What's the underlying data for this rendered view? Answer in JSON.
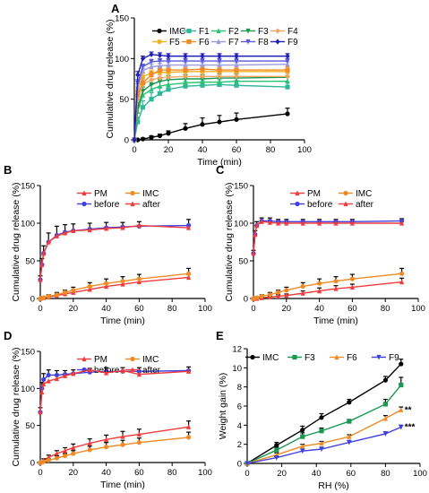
{
  "figure": {
    "panels": [
      {
        "label": "A",
        "xlabel": "Time (min)",
        "ylabel": "Cumulative drug release (%)"
      },
      {
        "label": "B",
        "xlabel": "Time (min)",
        "ylabel": "Cumulative drug release (%)"
      },
      {
        "label": "C",
        "xlabel": "Time (min)",
        "ylabel": "Cumulative drug release (%)"
      },
      {
        "label": "D",
        "xlabel": "Time (min)",
        "ylabel": "Cumulative drug release (%)"
      },
      {
        "label": "E",
        "xlabel": "RH (%)",
        "ylabel": "Weight gain (%)"
      }
    ]
  },
  "chart_data": [
    {
      "panel": "A",
      "type": "line",
      "xlabel": "Time (min)",
      "ylabel": "Cumulative drug release (%)",
      "xlim": [
        0,
        100
      ],
      "ylim": [
        0,
        150
      ],
      "xticks": [
        0,
        20,
        40,
        60,
        80,
        100
      ],
      "yticks": [
        0,
        50,
        100,
        150
      ],
      "x": [
        0,
        2,
        5,
        10,
        15,
        20,
        30,
        40,
        50,
        60,
        90
      ],
      "legend": "top, four columns",
      "series": [
        {
          "name": "IMC",
          "color": "#000000",
          "marker": "circle",
          "values": [
            0,
            0,
            1,
            3,
            5,
            8,
            14,
            19,
            22,
            25,
            32
          ],
          "errors": [
            0,
            0,
            1,
            2,
            2,
            3,
            6,
            8,
            8,
            8,
            7
          ]
        },
        {
          "name": "F1",
          "color": "#2fb79a",
          "marker": "square",
          "values": [
            0,
            22,
            40,
            50,
            57,
            62,
            66,
            67,
            68,
            67,
            65
          ],
          "errors": [
            0,
            6,
            8,
            8,
            7,
            6,
            6,
            6,
            6,
            6,
            6
          ]
        },
        {
          "name": "F2",
          "color": "#26c470",
          "marker": "triangle",
          "values": [
            0,
            35,
            55,
            62,
            66,
            68,
            70,
            71,
            71,
            72,
            72
          ],
          "errors": [
            0,
            6,
            6,
            6,
            6,
            6,
            5,
            5,
            5,
            5,
            5
          ]
        },
        {
          "name": "F3",
          "color": "#1a9850",
          "marker": "triangle-down",
          "values": [
            0,
            40,
            60,
            68,
            72,
            74,
            75,
            75,
            76,
            76,
            77
          ],
          "errors": [
            0,
            6,
            5,
            5,
            5,
            5,
            5,
            5,
            5,
            5,
            5
          ]
        },
        {
          "name": "F4",
          "color": "#f4a460",
          "marker": "diamond",
          "values": [
            0,
            50,
            68,
            74,
            76,
            77,
            78,
            78,
            78,
            78,
            78
          ],
          "errors": [
            0,
            5,
            5,
            4,
            4,
            4,
            4,
            4,
            4,
            4,
            4
          ]
        },
        {
          "name": "F5",
          "color": "#f2b01e",
          "marker": "circle",
          "values": [
            0,
            60,
            78,
            82,
            83,
            83,
            84,
            84,
            84,
            84,
            84
          ],
          "errors": [
            0,
            5,
            4,
            4,
            4,
            4,
            4,
            4,
            4,
            4,
            4
          ]
        },
        {
          "name": "F6",
          "color": "#f08a24",
          "marker": "square",
          "values": [
            0,
            55,
            70,
            80,
            86,
            86,
            86,
            87,
            86,
            86,
            86
          ],
          "errors": [
            0,
            5,
            5,
            4,
            4,
            4,
            4,
            4,
            4,
            4,
            4
          ]
        },
        {
          "name": "F7",
          "color": "#9b9bdf",
          "marker": "triangle",
          "values": [
            0,
            65,
            85,
            90,
            91,
            92,
            92,
            92,
            92,
            92,
            93
          ],
          "errors": [
            0,
            4,
            3,
            3,
            3,
            3,
            3,
            3,
            3,
            3,
            3
          ]
        },
        {
          "name": "F8",
          "color": "#5a5ad8",
          "marker": "triangle-down",
          "values": [
            0,
            70,
            90,
            96,
            97,
            97,
            97,
            97,
            97,
            97,
            97
          ],
          "errors": [
            0,
            4,
            3,
            3,
            3,
            3,
            3,
            3,
            3,
            3,
            3
          ]
        },
        {
          "name": "F9",
          "color": "#1f1fb4",
          "marker": "diamond",
          "values": [
            0,
            80,
            100,
            105,
            104,
            103,
            103,
            103,
            103,
            103,
            103
          ],
          "errors": [
            0,
            4,
            3,
            3,
            3,
            3,
            3,
            3,
            3,
            3,
            3
          ]
        }
      ]
    },
    {
      "panel": "B",
      "type": "line",
      "xlabel": "Time (min)",
      "ylabel": "Cumulative drug release (%)",
      "xlim": [
        0,
        100
      ],
      "ylim": [
        0,
        150
      ],
      "xticks": [
        0,
        20,
        40,
        60,
        80,
        100
      ],
      "yticks": [
        0,
        50,
        100,
        150
      ],
      "legend": "top, two columns",
      "series": [
        {
          "name": "PM",
          "color": "#ef3b3b",
          "marker": "triangle",
          "x": [
            0,
            2,
            5,
            10,
            15,
            20,
            30,
            40,
            50,
            60,
            90
          ],
          "values": [
            0,
            1,
            2,
            4,
            6,
            8,
            12,
            16,
            19,
            22,
            28
          ],
          "errors": [
            0,
            1,
            1,
            2,
            2,
            3,
            3,
            4,
            4,
            4,
            4
          ]
        },
        {
          "name": "IMC",
          "color": "#f08a24",
          "marker": "circle",
          "x": [
            0,
            2,
            5,
            10,
            15,
            20,
            30,
            40,
            50,
            60,
            90
          ],
          "values": [
            0,
            1,
            3,
            5,
            8,
            11,
            16,
            20,
            23,
            26,
            33
          ],
          "errors": [
            0,
            1,
            2,
            3,
            3,
            4,
            5,
            6,
            6,
            6,
            7
          ]
        },
        {
          "name": "before",
          "color": "#4040e0",
          "marker": "circle",
          "x": [
            0,
            1,
            2,
            5,
            10,
            15,
            20,
            30,
            40,
            50,
            60,
            90
          ],
          "values": [
            25,
            45,
            60,
            75,
            84,
            88,
            90,
            92,
            94,
            95,
            96,
            97
          ],
          "errors": [
            5,
            8,
            10,
            12,
            12,
            10,
            9,
            8,
            7,
            6,
            6,
            8
          ]
        },
        {
          "name": "after",
          "color": "#ef3b3b",
          "marker": "triangle",
          "x": [
            0,
            1,
            2,
            5,
            10,
            15,
            20,
            30,
            40,
            50,
            60,
            90
          ],
          "values": [
            25,
            45,
            60,
            75,
            83,
            87,
            90,
            91,
            93,
            94,
            97,
            94
          ],
          "errors": [
            0,
            0,
            0,
            0,
            0,
            0,
            0,
            0,
            0,
            0,
            0,
            0
          ]
        }
      ]
    },
    {
      "panel": "C",
      "type": "line",
      "xlabel": "Time (min)",
      "ylabel": "Cumulative drug release (%)",
      "xlim": [
        0,
        100
      ],
      "ylim": [
        0,
        150
      ],
      "xticks": [
        0,
        20,
        40,
        60,
        80,
        100
      ],
      "yticks": [
        0,
        50,
        100,
        150
      ],
      "legend": "top, two columns",
      "series": [
        {
          "name": "PM",
          "color": "#ef3b3b",
          "marker": "triangle",
          "x": [
            0,
            2,
            5,
            10,
            15,
            20,
            30,
            40,
            50,
            60,
            90
          ],
          "values": [
            0,
            0,
            1,
            2,
            3,
            4,
            7,
            10,
            13,
            15,
            22
          ],
          "errors": [
            0,
            1,
            1,
            1,
            2,
            2,
            3,
            4,
            4,
            4,
            5
          ]
        },
        {
          "name": "IMC",
          "color": "#f08a24",
          "marker": "circle",
          "x": [
            0,
            2,
            5,
            10,
            15,
            20,
            30,
            40,
            50,
            60,
            90
          ],
          "values": [
            0,
            1,
            3,
            5,
            8,
            11,
            16,
            20,
            23,
            26,
            33
          ],
          "errors": [
            0,
            1,
            2,
            3,
            3,
            4,
            5,
            6,
            6,
            6,
            7
          ]
        },
        {
          "name": "before",
          "color": "#4040e0",
          "marker": "circle",
          "x": [
            0,
            1,
            2,
            5,
            10,
            15,
            20,
            30,
            40,
            50,
            60,
            90
          ],
          "values": [
            60,
            85,
            97,
            103,
            103,
            102,
            102,
            102,
            102,
            102,
            102,
            103
          ],
          "errors": [
            4,
            5,
            5,
            4,
            4,
            3,
            3,
            3,
            3,
            3,
            3,
            3
          ]
        },
        {
          "name": "after",
          "color": "#ef3b3b",
          "marker": "triangle",
          "x": [
            0,
            1,
            2,
            5,
            10,
            15,
            20,
            30,
            40,
            50,
            60,
            90
          ],
          "values": [
            60,
            85,
            97,
            102,
            101,
            100,
            100,
            100,
            100,
            100,
            100,
            100
          ],
          "errors": [
            0,
            0,
            0,
            0,
            0,
            0,
            0,
            0,
            0,
            0,
            0,
            0
          ]
        }
      ]
    },
    {
      "panel": "D",
      "type": "line",
      "xlabel": "Time (min)",
      "ylabel": "Cumulative drug release (%)",
      "xlim": [
        0,
        100
      ],
      "ylim": [
        0,
        150
      ],
      "xticks": [
        0,
        20,
        40,
        60,
        80,
        100
      ],
      "yticks": [
        0,
        50,
        100,
        150
      ],
      "legend": "top, two columns",
      "series": [
        {
          "name": "PM",
          "color": "#ef3b3b",
          "marker": "triangle",
          "x": [
            0,
            2,
            5,
            10,
            15,
            20,
            30,
            40,
            50,
            60,
            90
          ],
          "values": [
            0,
            3,
            7,
            12,
            16,
            20,
            26,
            31,
            35,
            38,
            48
          ],
          "errors": [
            0,
            2,
            3,
            4,
            4,
            5,
            6,
            6,
            7,
            7,
            8
          ]
        },
        {
          "name": "IMC",
          "color": "#f08a24",
          "marker": "circle",
          "x": [
            0,
            2,
            5,
            10,
            15,
            20,
            30,
            40,
            50,
            60,
            90
          ],
          "values": [
            0,
            1,
            3,
            6,
            9,
            12,
            17,
            21,
            24,
            27,
            34
          ],
          "errors": [
            0,
            1,
            2,
            3,
            3,
            4,
            5,
            6,
            6,
            6,
            7
          ]
        },
        {
          "name": "before",
          "color": "#4040e0",
          "marker": "circle",
          "x": [
            0,
            1,
            2,
            5,
            10,
            15,
            20,
            30,
            40,
            50,
            60,
            90
          ],
          "values": [
            68,
            100,
            112,
            118,
            118,
            119,
            120,
            122,
            123,
            123,
            123,
            124
          ],
          "errors": [
            6,
            8,
            8,
            7,
            6,
            5,
            5,
            5,
            5,
            5,
            5,
            5
          ]
        },
        {
          "name": "after",
          "color": "#ef3b3b",
          "marker": "triangle",
          "x": [
            0,
            1,
            2,
            5,
            10,
            15,
            20,
            30,
            40,
            50,
            60,
            90
          ],
          "values": [
            68,
            95,
            106,
            110,
            113,
            117,
            120,
            125,
            121,
            124,
            119,
            123
          ],
          "errors": [
            0,
            0,
            0,
            0,
            0,
            0,
            0,
            0,
            0,
            0,
            0,
            0
          ]
        }
      ]
    },
    {
      "panel": "E",
      "type": "line",
      "xlabel": "RH (%)",
      "ylabel": "Weight gain (%)",
      "xlim": [
        0,
        100
      ],
      "ylim": [
        0,
        12
      ],
      "xticks": [
        0,
        20,
        40,
        60,
        80,
        100
      ],
      "yticks": [
        0,
        2,
        4,
        6,
        8,
        10,
        12
      ],
      "x": [
        0,
        17,
        32,
        43,
        59,
        80,
        89
      ],
      "legend": "top, one row",
      "series": [
        {
          "name": "IMC",
          "color": "#000000",
          "marker": "circle",
          "values": [
            0,
            1.9,
            3.5,
            4.8,
            6.4,
            8.7,
            10.4
          ],
          "errors": [
            0,
            0.3,
            0.4,
            0.4,
            0.3,
            0.4,
            0.5
          ]
        },
        {
          "name": "F3",
          "color": "#1a9850",
          "marker": "square",
          "values": [
            0,
            1.4,
            2.8,
            3.4,
            4.4,
            6.2,
            8.2
          ],
          "errors": [
            0,
            0.3,
            0.4,
            0.3,
            0.2,
            0.5,
            0.8
          ]
        },
        {
          "name": "F6",
          "color": "#f08a24",
          "marker": "triangle",
          "values": [
            0,
            0.9,
            1.8,
            2.1,
            2.8,
            4.7,
            5.6
          ],
          "errors": [
            0,
            0.2,
            0.2,
            0.2,
            0.2,
            0.3,
            0.3
          ]
        },
        {
          "name": "F9",
          "color": "#4040e0",
          "marker": "triangle-down",
          "values": [
            0,
            0.6,
            1.3,
            1.5,
            2.2,
            3.1,
            3.8
          ],
          "errors": [
            0,
            0.1,
            0.2,
            0.2,
            0.2,
            0.2,
            0.2
          ]
        }
      ],
      "annotations": [
        {
          "text": "**",
          "series": "F6",
          "x": 89
        },
        {
          "text": "***",
          "series": "F9",
          "x": 89
        }
      ]
    }
  ]
}
